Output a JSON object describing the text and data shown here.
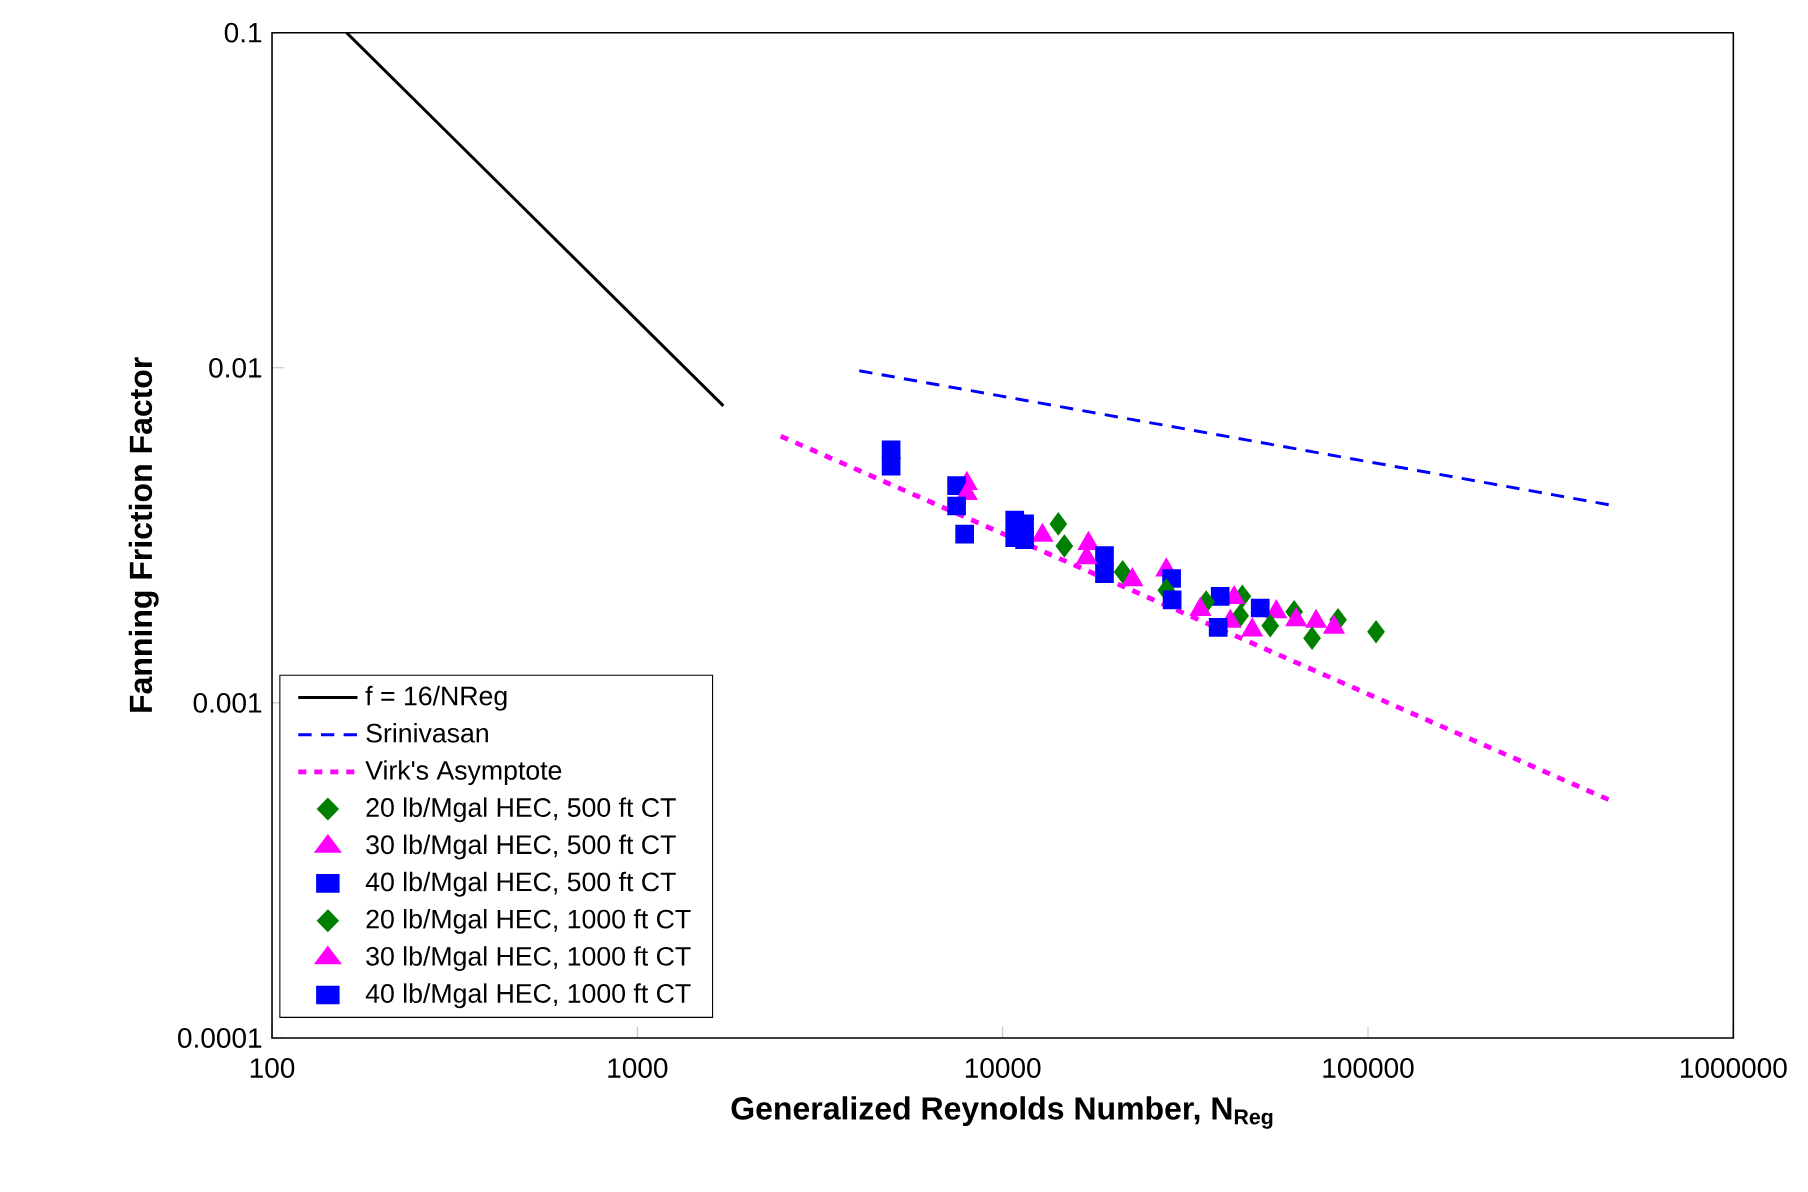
{
  "chart_data": {
    "type": "scatter",
    "xlabel": "Generalized Reynolds Number, N$_{Reg}$",
    "ylabel": "Fanning Friction Factor",
    "log": "xy",
    "grid": false,
    "legend": "bottom left",
    "xlim": [
      100,
      1000000
    ],
    "ylim": [
      0.0001,
      0.1
    ],
    "xticks": [
      100,
      1000,
      10000,
      100000,
      1000000
    ],
    "yticks": [
      0.0001,
      0.001,
      0.01,
      0.1
    ],
    "series": [
      {
        "name": "f = 16/NReg",
        "type": "line",
        "color": "#000000",
        "line_style": "solid",
        "marker": "none",
        "x": [
          160,
          1720
        ],
        "values": [
          0.1,
          0.0077
        ]
      },
      {
        "name": "Srinivasan",
        "type": "line",
        "color": "#0000ff",
        "line_style": "dashed",
        "marker": "none",
        "x": [
          4050,
          458000
        ],
        "values": [
          0.0098,
          0.0039
        ]
      },
      {
        "name": "Virk's Asymptote",
        "type": "line",
        "color": "#ff00ff",
        "line_style": "dotted",
        "marker": "none",
        "x": [
          2470,
          458000
        ],
        "values": [
          0.00625,
          0.000513
        ]
      },
      {
        "name": "20 lb/Mgal HEC, 500 ft CT",
        "color": "#008000",
        "marker": "diamond",
        "x": [
          14200,
          45300,
          62800,
          82800,
          105200
        ],
        "values": [
          0.00342,
          0.00208,
          0.00187,
          0.00177,
          0.00163
        ]
      },
      {
        "name": "30 lb/Mgal HEC, 500 ft CT",
        "color": "#ff00ff",
        "marker": "triangle",
        "x": [
          7980,
          17170,
          28050,
          43000,
          56100,
          63600,
          72100,
          80700
        ],
        "values": [
          0.00451,
          0.00299,
          0.00249,
          0.00206,
          0.00187,
          0.00177,
          0.00175,
          0.00168
        ]
      },
      {
        "name": "40 lb/Mgal HEC, 500 ft CT",
        "color": "#0000ff",
        "marker": "square",
        "x": [
          4950,
          7480,
          10790,
          11480,
          19000,
          29000,
          39400,
          50700
        ],
        "values": [
          0.00569,
          0.00445,
          0.00351,
          0.00342,
          0.00275,
          0.00235,
          0.00208,
          0.00192
        ]
      },
      {
        "name": "20 lb/Mgal HEC, 1000 ft CT",
        "color": "#008000",
        "marker": "diamond",
        "x": [
          14750,
          21300,
          28050,
          36070,
          44670,
          54000,
          70300
        ],
        "values": [
          0.00294,
          0.00246,
          0.00217,
          0.002,
          0.00182,
          0.0017,
          0.00156
        ]
      },
      {
        "name": "30 lb/Mgal HEC, 1000 ft CT",
        "color": "#ff00ff",
        "marker": "triangle",
        "x": [
          7980,
          12850,
          16980,
          22650,
          34760,
          42000,
          48200
        ],
        "values": [
          0.00421,
          0.00316,
          0.00271,
          0.00233,
          0.0019,
          0.00175,
          0.00165
        ]
      },
      {
        "name": "40 lb/Mgal HEC, 1000 ft CT",
        "color": "#0000ff",
        "marker": "square",
        "x": [
          4950,
          7480,
          7870,
          10790,
          11480,
          19000,
          29100,
          38900
        ],
        "values": [
          0.00509,
          0.00387,
          0.00319,
          0.00311,
          0.00307,
          0.00243,
          0.00203,
          0.00168
        ]
      }
    ]
  }
}
